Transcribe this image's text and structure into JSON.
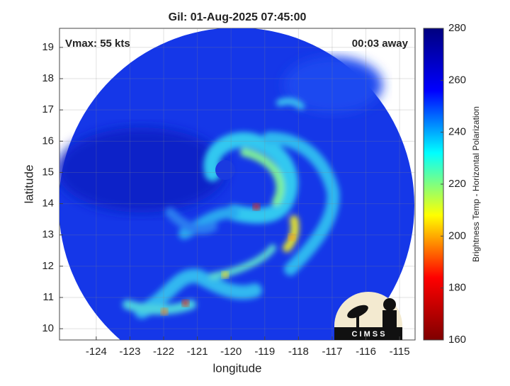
{
  "map": {
    "title": "Gil: 01-Aug-2025 07:45:00",
    "xlabel": "longitude",
    "ylabel": "latitude",
    "annotation_left": "Vmax: 55 kts",
    "annotation_right": "00:03 away",
    "logo": "C I M S S",
    "xlim": [
      -125.09,
      -114.54
    ],
    "ylim": [
      9.64,
      19.61
    ],
    "xticks": [
      -124,
      -123,
      -122,
      -121,
      -120,
      -119,
      -118,
      -117,
      -116,
      -115
    ],
    "yticks": [
      10,
      11,
      12,
      13,
      14,
      15,
      16,
      17,
      18,
      19
    ],
    "grid": true,
    "colorbar": {
      "label": "Brightness Temp - Horizontal Polarization",
      "lim": [
        160,
        280
      ],
      "ticks": [
        160,
        180,
        200,
        220,
        240,
        260,
        280
      ],
      "colormap": [
        "#7f0000",
        "#ff0000",
        "#ffff00",
        "#00ffff",
        "#0000ff",
        "#00007f"
      ]
    }
  }
}
